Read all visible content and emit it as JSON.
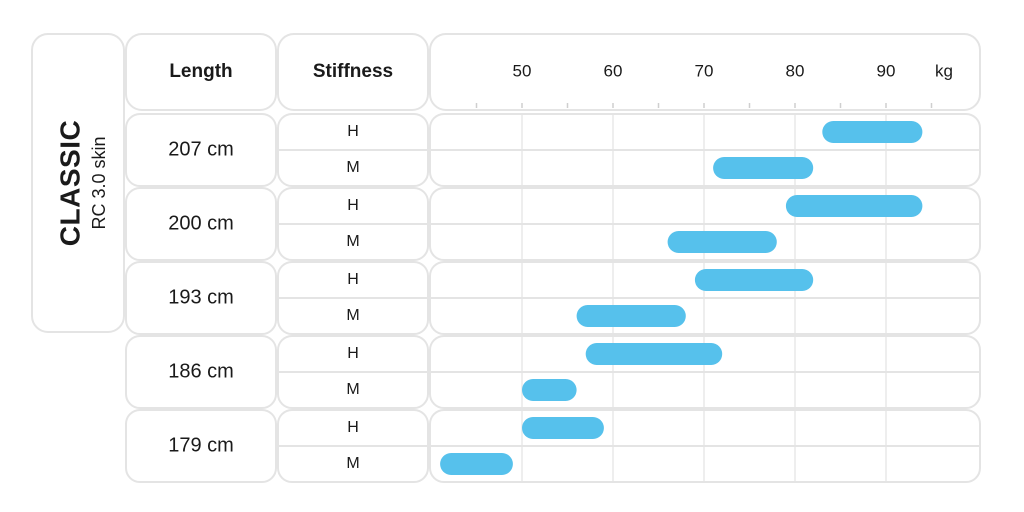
{
  "model": {
    "name": "CLASSIC",
    "subtitle": "RC 3.0 skin"
  },
  "headers": {
    "length": "Length",
    "stiffness": "Stiffness",
    "unit": "kg"
  },
  "chart_data": {
    "type": "bar",
    "orientation": "horizontal-range",
    "x_ticks": [
      50,
      60,
      70,
      80,
      90
    ],
    "x_unit": "kg",
    "grid": true,
    "rows": [
      {
        "length": "207 cm",
        "items": [
          {
            "stiffness": "H",
            "min": 83,
            "max": 94
          },
          {
            "stiffness": "M",
            "min": 71,
            "max": 82
          }
        ]
      },
      {
        "length": "200 cm",
        "items": [
          {
            "stiffness": "H",
            "min": 79,
            "max": 94
          },
          {
            "stiffness": "M",
            "min": 66,
            "max": 78
          }
        ]
      },
      {
        "length": "193 cm",
        "items": [
          {
            "stiffness": "H",
            "min": 69,
            "max": 82
          },
          {
            "stiffness": "M",
            "min": 56,
            "max": 68
          }
        ]
      },
      {
        "length": "186 cm",
        "items": [
          {
            "stiffness": "H",
            "min": 57,
            "max": 72
          },
          {
            "stiffness": "M",
            "min": 50,
            "max": 56
          }
        ]
      },
      {
        "length": "179 cm",
        "items": [
          {
            "stiffness": "H",
            "min": 50,
            "max": 59
          },
          {
            "stiffness": "M",
            "min": 41,
            "max": 49
          }
        ]
      }
    ],
    "colors": {
      "bar": "#56c1ec"
    }
  }
}
